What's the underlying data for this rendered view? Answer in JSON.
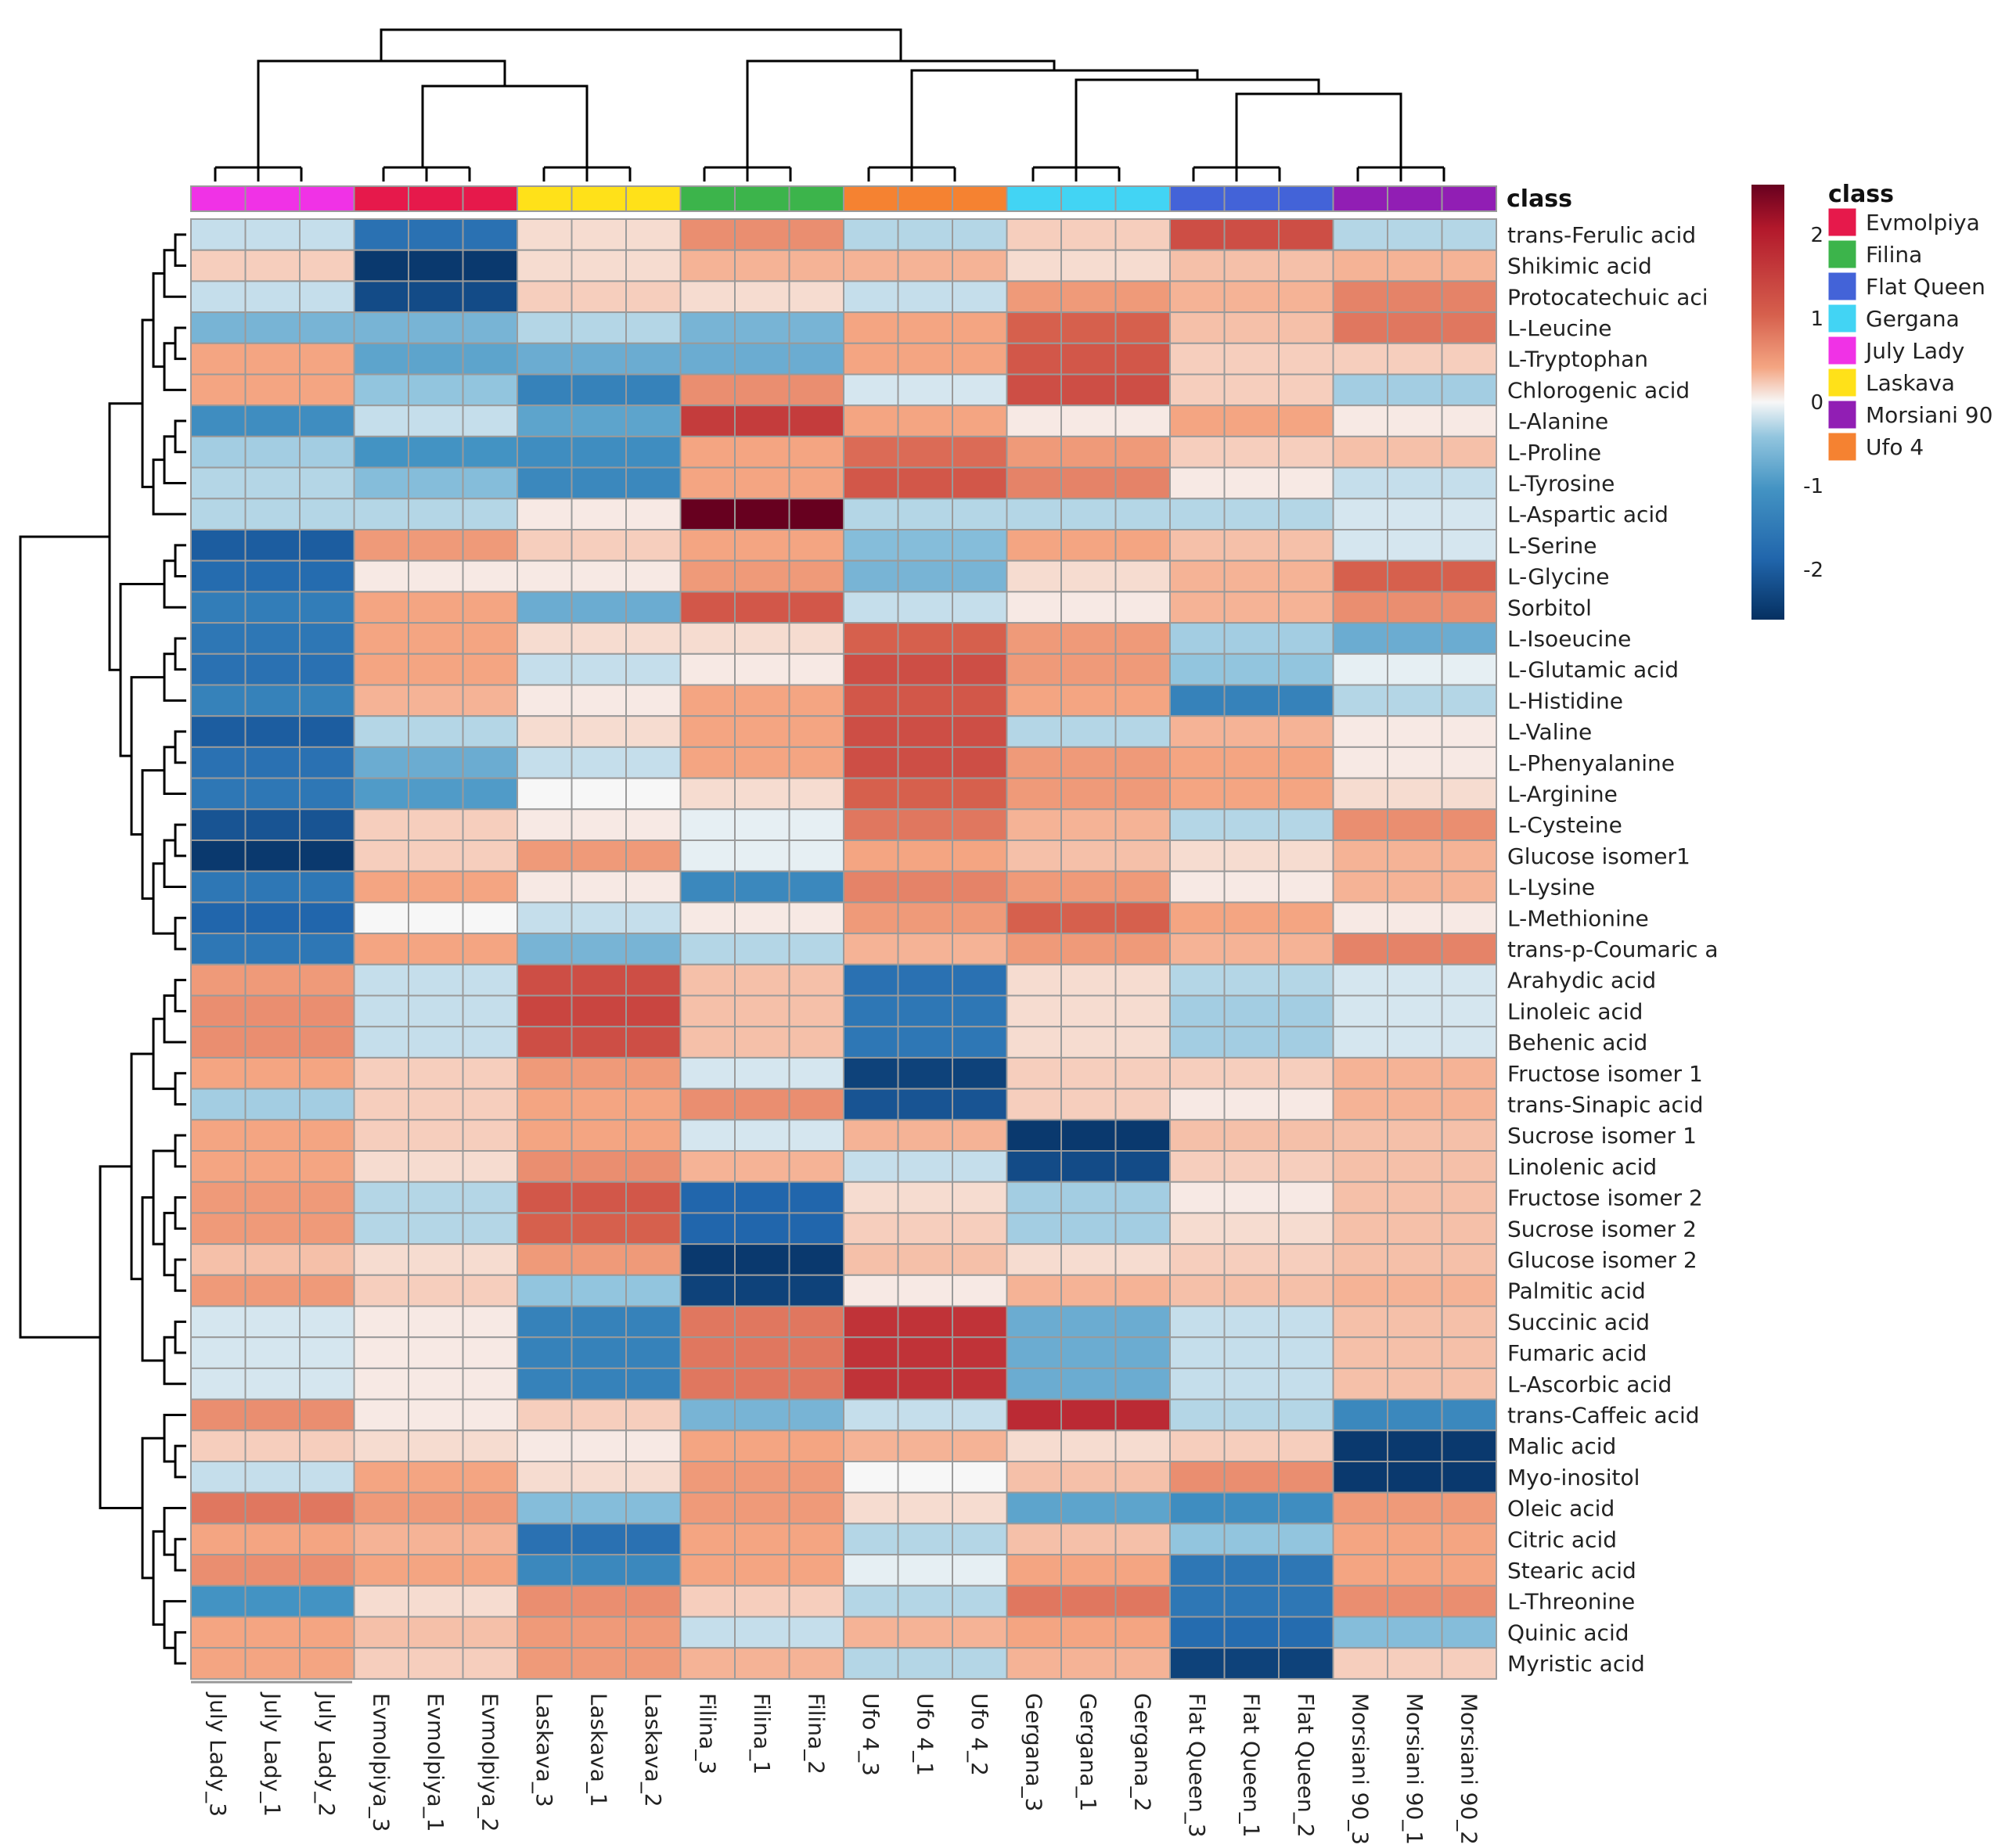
{
  "chart_data": {
    "type": "heatmap",
    "title": "",
    "annotation_title": "class",
    "columns": [
      "July Lady_3",
      "July Lady_1",
      "July Lady_2",
      "Evmolpiya_3",
      "Evmolpiya_1",
      "Evmolpiya_2",
      "Laskava_3",
      "Laskava_1",
      "Laskava_2",
      "Filina_3",
      "Filina_1",
      "Filina_2",
      "Ufo 4_3",
      "Ufo 4_1",
      "Ufo 4_2",
      "Gergana_3",
      "Gergana_1",
      "Gergana_2",
      "Flat Queen_3",
      "Flat Queen_1",
      "Flat Queen_2",
      "Morsiani 90_3",
      "Morsiani 90_1",
      "Morsiani 90_2"
    ],
    "groups": [
      {
        "name": "July Lady",
        "color": "#f032e6"
      },
      {
        "name": "Evmolpiya",
        "color": "#e6194b"
      },
      {
        "name": "Laskava",
        "color": "#ffe119"
      },
      {
        "name": "Filina",
        "color": "#3cb44b"
      },
      {
        "name": "Ufo 4",
        "color": "#f58231"
      },
      {
        "name": "Gergana",
        "color": "#42d4f4"
      },
      {
        "name": "Flat Queen",
        "color": "#4363d8"
      },
      {
        "name": "Morsiani 90",
        "color": "#911eb4"
      }
    ],
    "legend": [
      {
        "name": "Evmolpiya",
        "color": "#e6194b"
      },
      {
        "name": "Filina",
        "color": "#3cb44b"
      },
      {
        "name": "Flat Queen",
        "color": "#4363d8"
      },
      {
        "name": "Gergana",
        "color": "#42d4f4"
      },
      {
        "name": "July Lady",
        "color": "#f032e6"
      },
      {
        "name": "Laskava",
        "color": "#ffe119"
      },
      {
        "name": "Morsiani 90",
        "color": "#911eb4"
      },
      {
        "name": "Ufo 4",
        "color": "#f58231"
      }
    ],
    "color_scale": {
      "min": -2.6,
      "max": 2.6,
      "ticks": [
        2,
        1,
        0,
        -1,
        -2
      ],
      "tick_labels": [
        "2",
        "1",
        "0",
        "-1",
        "-2"
      ]
    },
    "rows": [
      "trans-Ferulic acid",
      "Shikimic acid",
      "Protocatechuic aci",
      "L-Leucine",
      "L-Tryptophan",
      "Chlorogenic acid",
      "L-Alanine",
      "L-Proline",
      "L-Tyrosine",
      "L-Aspartic acid",
      "L-Serine",
      "L-Glycine",
      "Sorbitol",
      "L-Isoeucine",
      "L-Glutamic acid",
      "L-Histidine",
      "L-Valine",
      "L-Phenyalanine",
      "L-Arginine",
      "L-Cysteine",
      "Glucose isomer1",
      "L-Lysine",
      "L-Methionine",
      "trans-p-Coumaric a",
      "Arahydic acid",
      "Linoleic acid",
      "Behenic acid",
      "Fructose isomer 1",
      "trans-Sinapic acid",
      "Sucrose isomer 1",
      "Linolenic acid",
      "Fructose isomer 2",
      "Sucrose isomer 2",
      "Glucose isomer 2",
      "Palmitic acid",
      "Succinic acid",
      "Fumaric acid",
      "L-Ascorbic acid",
      "trans-Caffeic acid",
      "Malic acid",
      "Myo-inositol",
      "Oleic acid",
      "Citric acid",
      "Stearic acid",
      "L-Threonine",
      "Quinic acid",
      "Myristic acid"
    ],
    "group_values": [
      [
        -0.3,
        -1.8,
        0.2,
        0.8,
        -0.4,
        0.3,
        1.4,
        -0.4
      ],
      [
        0.3,
        -2.5,
        0.2,
        0.5,
        0.5,
        0.2,
        0.4,
        0.5
      ],
      [
        -0.3,
        -2.3,
        0.3,
        0.2,
        -0.3,
        0.7,
        0.5,
        0.9
      ],
      [
        -0.8,
        -0.8,
        -0.4,
        -0.8,
        0.6,
        1.2,
        0.4,
        1.0
      ],
      [
        0.6,
        -1.0,
        -0.9,
        -0.9,
        0.6,
        1.3,
        0.3,
        0.3
      ],
      [
        0.6,
        -0.6,
        -1.5,
        0.8,
        -0.2,
        1.4,
        0.3,
        -0.5
      ],
      [
        -1.3,
        -0.3,
        -1.0,
        1.6,
        0.6,
        0.1,
        0.6,
        0.1
      ],
      [
        -0.5,
        -1.2,
        -1.3,
        0.6,
        1.1,
        0.7,
        0.3,
        0.4
      ],
      [
        -0.4,
        -0.7,
        -1.4,
        0.6,
        1.3,
        0.9,
        0.1,
        -0.3
      ],
      [
        -0.4,
        -0.4,
        0.1,
        2.6,
        -0.4,
        -0.4,
        -0.4,
        -0.2
      ],
      [
        -2.1,
        0.7,
        0.3,
        0.6,
        -0.7,
        0.6,
        0.4,
        -0.2
      ],
      [
        -1.9,
        0.1,
        0.1,
        0.7,
        -0.8,
        0.2,
        0.5,
        1.2
      ],
      [
        -1.6,
        0.6,
        -0.9,
        1.3,
        -0.3,
        0.1,
        0.5,
        0.8
      ],
      [
        -1.7,
        0.6,
        0.2,
        0.2,
        1.2,
        0.7,
        -0.5,
        -0.9
      ],
      [
        -1.8,
        0.6,
        -0.3,
        0.1,
        1.4,
        0.7,
        -0.6,
        -0.1
      ],
      [
        -1.5,
        0.5,
        0.1,
        0.6,
        1.3,
        0.6,
        -1.5,
        -0.4
      ],
      [
        -2.1,
        -0.4,
        0.2,
        0.6,
        1.4,
        -0.4,
        0.5,
        0.1
      ],
      [
        -1.8,
        -0.9,
        -0.3,
        0.6,
        1.4,
        0.7,
        0.6,
        0.1
      ],
      [
        -1.7,
        -1.1,
        0.0,
        0.2,
        1.2,
        0.7,
        0.6,
        0.2
      ],
      [
        -2.2,
        0.3,
        0.1,
        -0.1,
        1.0,
        0.5,
        -0.4,
        0.8
      ],
      [
        -2.5,
        0.3,
        0.7,
        -0.1,
        0.6,
        0.4,
        0.2,
        0.5
      ],
      [
        -1.7,
        0.6,
        0.1,
        -1.4,
        0.9,
        0.7,
        0.1,
        0.5
      ],
      [
        -2.0,
        0.0,
        -0.3,
        0.1,
        0.7,
        1.2,
        0.6,
        0.1
      ],
      [
        -1.7,
        0.6,
        -0.8,
        -0.4,
        0.5,
        0.7,
        0.5,
        0.9
      ],
      [
        0.7,
        -0.3,
        1.4,
        0.4,
        -1.8,
        0.2,
        -0.4,
        -0.2
      ],
      [
        0.8,
        -0.3,
        1.5,
        0.4,
        -1.7,
        0.2,
        -0.5,
        -0.2
      ],
      [
        0.8,
        -0.3,
        1.4,
        0.4,
        -1.7,
        0.2,
        -0.5,
        -0.2
      ],
      [
        0.6,
        0.3,
        0.7,
        -0.2,
        -2.4,
        0.3,
        0.3,
        0.5
      ],
      [
        -0.5,
        0.3,
        0.6,
        0.8,
        -2.2,
        0.3,
        0.1,
        0.5
      ],
      [
        0.6,
        0.3,
        0.6,
        -0.2,
        0.5,
        -2.5,
        0.4,
        0.4
      ],
      [
        0.6,
        0.2,
        0.8,
        0.5,
        -0.3,
        -2.3,
        0.3,
        0.4
      ],
      [
        0.7,
        -0.4,
        1.3,
        -2.0,
        0.2,
        -0.5,
        0.1,
        0.4
      ],
      [
        0.7,
        -0.4,
        1.2,
        -2.0,
        0.3,
        -0.5,
        0.2,
        0.4
      ],
      [
        0.4,
        0.2,
        0.7,
        -2.5,
        0.4,
        0.2,
        0.3,
        0.4
      ],
      [
        0.7,
        0.3,
        -0.6,
        -2.4,
        0.1,
        0.5,
        0.4,
        0.5
      ],
      [
        -0.2,
        0.1,
        -1.5,
        1.0,
        1.7,
        -0.9,
        -0.3,
        0.4
      ],
      [
        -0.2,
        0.1,
        -1.5,
        1.0,
        1.7,
        -0.9,
        -0.3,
        0.4
      ],
      [
        -0.2,
        0.1,
        -1.5,
        1.0,
        1.7,
        -0.9,
        -0.3,
        0.4
      ],
      [
        0.8,
        0.1,
        0.3,
        -0.8,
        -0.3,
        1.8,
        -0.4,
        -1.4
      ],
      [
        0.3,
        0.2,
        0.1,
        0.6,
        0.5,
        0.2,
        0.3,
        -2.5
      ],
      [
        -0.3,
        0.6,
        0.2,
        0.7,
        0.0,
        0.4,
        0.8,
        -2.5
      ],
      [
        1.0,
        0.7,
        -0.7,
        0.7,
        0.2,
        -1.0,
        -1.3,
        0.7
      ],
      [
        0.6,
        0.5,
        -1.8,
        0.6,
        -0.4,
        0.4,
        -0.6,
        0.6
      ],
      [
        0.8,
        0.6,
        -1.4,
        0.6,
        -0.1,
        0.6,
        -1.7,
        0.6
      ],
      [
        -1.2,
        0.2,
        0.8,
        0.3,
        -0.4,
        1.0,
        -1.7,
        0.8
      ],
      [
        0.6,
        0.4,
        0.7,
        -0.3,
        0.5,
        0.6,
        -1.9,
        -0.7
      ],
      [
        0.6,
        0.3,
        0.7,
        0.5,
        -0.4,
        0.5,
        -2.4,
        0.3
      ]
    ]
  }
}
